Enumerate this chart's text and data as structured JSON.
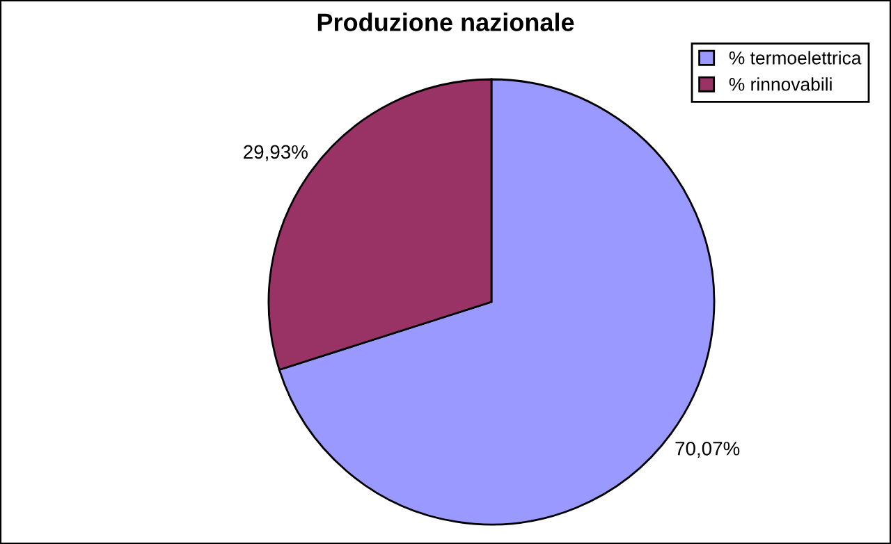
{
  "chart_data": {
    "type": "pie",
    "title": "Produzione nazionale",
    "categories": [
      "% termoelettrica",
      "% rinnovabili"
    ],
    "values": [
      70.07,
      29.93
    ],
    "colors": [
      "#9999ff",
      "#993366"
    ],
    "value_labels": [
      "70,07%",
      "29,93%"
    ],
    "legend": "top right"
  }
}
